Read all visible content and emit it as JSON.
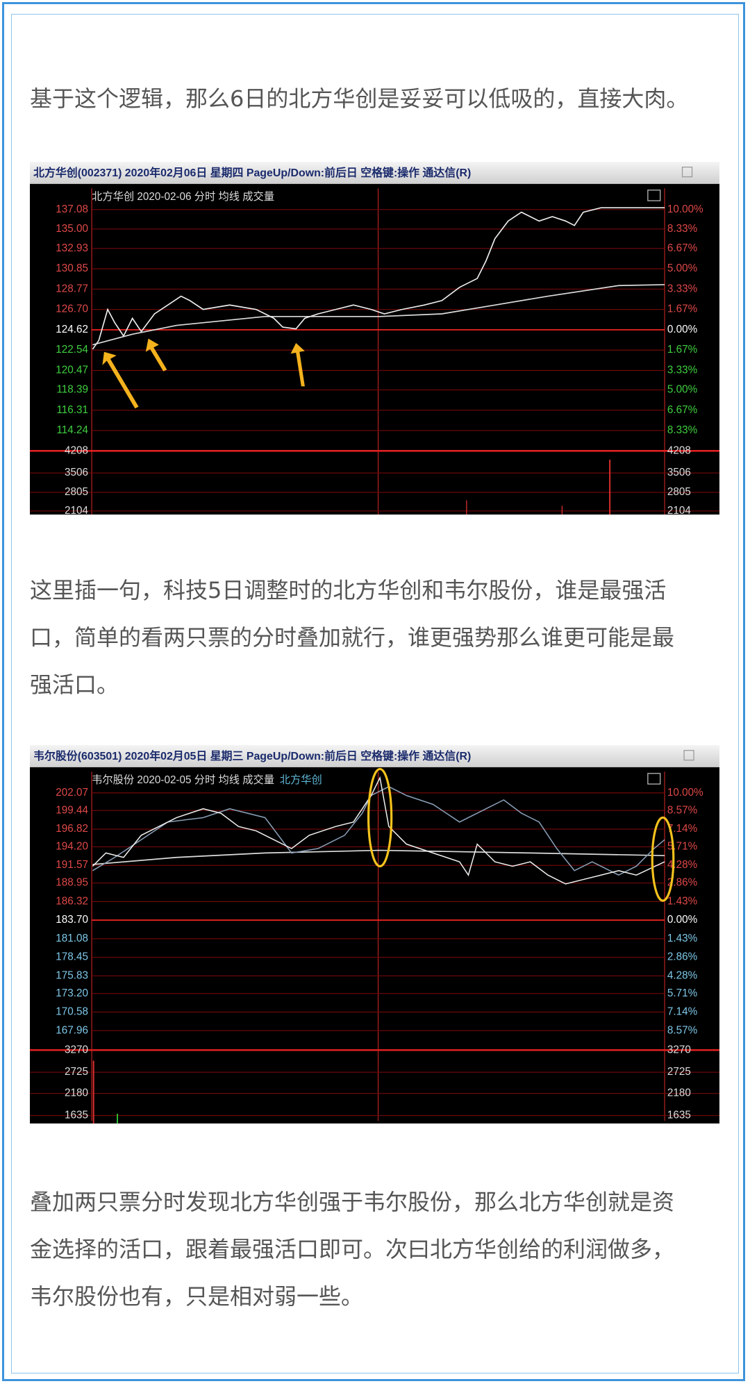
{
  "paragraphs": [
    [
      "基于这个逻辑，那么6日的北方华创是妥妥可以低吸的，直接大肉。"
    ],
    [
      "这里插一句，科技5日调整时的北方华创和韦尔股份，谁是最强活",
      "口，简单的看两只票的分时叠加就行，谁更强势那么谁更可能是最",
      "强活口。"
    ],
    [
      "叠加两只票分时发现北方华创强于韦尔股份，那么北方华创就是资",
      "金选择的活口，跟着最强活口即可。次曰北方华创给的利润做多，",
      "韦尔股份也有，只是相对弱一些。"
    ]
  ],
  "charts": [
    {
      "title_bar": "北方华创(002371) 2020年02月06日 星期四 PageUp/Down:前后日 空格键:操作 通达信(R)",
      "subtitle": "北方华创  2020-02-06 分时 均线 成交量",
      "price_labels": [
        "137.08",
        "135.00",
        "132.93",
        "130.85",
        "128.77",
        "126.70",
        "124.62",
        "122.54",
        "120.47",
        "118.39",
        "116.31",
        "114.24"
      ],
      "percent_labels": [
        "10.00%",
        "8.33%",
        "6.67%",
        "5.00%",
        "3.33%",
        "1.67%",
        "0.00%",
        "1.67%",
        "3.33%",
        "5.00%",
        "6.67%",
        "8.33%"
      ],
      "volume_labels": [
        "4208",
        "3506",
        "2805",
        "2104"
      ]
    },
    {
      "title_bar": "韦尔股份(603501) 2020年02月05日 星期三 PageUp/Down:前后日 空格键:操作 通达信(R)",
      "subtitle": "韦尔股份  2020-02-05 分时 均线 成交量",
      "overlay_name": "北方华创",
      "price_labels": [
        "202.07",
        "199.44",
        "196.82",
        "194.20",
        "191.57",
        "188.95",
        "186.32",
        "183.70",
        "181.08",
        "178.45",
        "175.83",
        "173.20",
        "170.58",
        "167.96"
      ],
      "percent_labels": [
        "10.00%",
        "8.57%",
        "7.14%",
        "5.71%",
        "4.28%",
        "2.86%",
        "1.43%",
        "0.00%",
        "1.43%",
        "2.86%",
        "4.28%",
        "5.71%",
        "7.14%",
        "8.57%"
      ],
      "volume_labels": [
        "3270",
        "2725",
        "2180",
        "1635"
      ]
    }
  ]
}
